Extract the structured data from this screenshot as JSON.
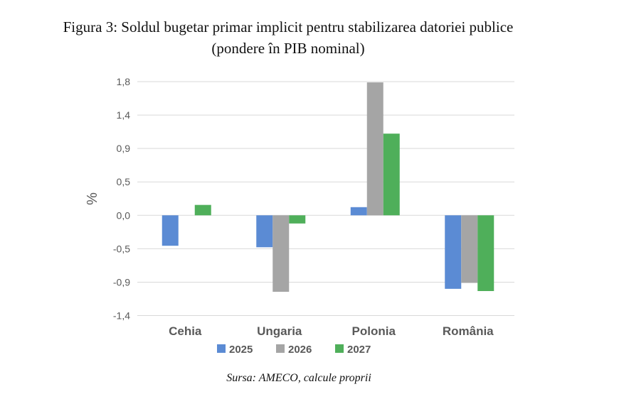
{
  "title": "Figura 3: Soldul bugetar primar implicit pentru stabilizarea datoriei publice",
  "subtitle": "(pondere în PIB nominal)",
  "source": "Sursa: AMECO, calcule proprii",
  "chart_data": {
    "type": "bar",
    "title": "Figura 3: Soldul bugetar primar implicit pentru stabilizarea datoriei publice",
    "subtitle": "(pondere în PIB nominal)",
    "xlabel": "",
    "ylabel": "%",
    "categories": [
      "Cehia",
      "Ungaria",
      "Polonia",
      "România"
    ],
    "series": [
      {
        "name": "2025",
        "color": "#5b8bd4",
        "values": [
          -0.41,
          -0.43,
          0.11,
          -0.99
        ]
      },
      {
        "name": "2026",
        "color": "#a5a5a5",
        "values": [
          null,
          -1.03,
          1.79,
          -0.91
        ]
      },
      {
        "name": "2027",
        "color": "#4faf5a",
        "values": [
          0.14,
          -0.11,
          1.1,
          -1.02
        ]
      }
    ],
    "yticks": [
      "1,8",
      "1,4",
      "0,9",
      "0,5",
      "0,0",
      "-0,5",
      "-0,9",
      "-1,4"
    ],
    "ytick_values": [
      1.8,
      1.35,
      0.9,
      0.45,
      0,
      -0.45,
      -0.9,
      -1.35
    ],
    "ylim": [
      -1.35,
      1.8
    ],
    "grid": true,
    "legend": "bottom"
  }
}
